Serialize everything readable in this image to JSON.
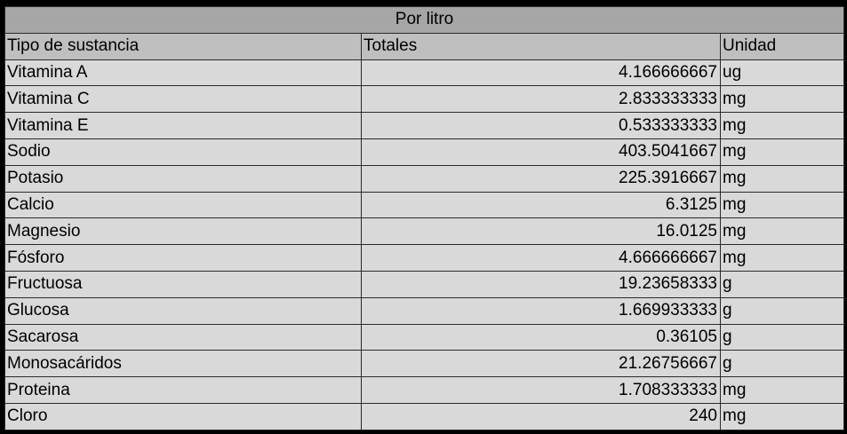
{
  "table": {
    "title": "Por litro",
    "headers": [
      "Tipo de sustancia",
      "Totales",
      "Unidad"
    ],
    "rows": [
      {
        "substance": "Vitamina A",
        "total": "4.166666667",
        "unit": "ug"
      },
      {
        "substance": "Vitamina C",
        "total": "2.833333333",
        "unit": "mg"
      },
      {
        "substance": "Vitamina E",
        "total": "0.533333333",
        "unit": "mg"
      },
      {
        "substance": "Sodio",
        "total": "403.5041667",
        "unit": "mg"
      },
      {
        "substance": "Potasio",
        "total": "225.3916667",
        "unit": "mg"
      },
      {
        "substance": "Calcio",
        "total": "6.3125",
        "unit": "mg"
      },
      {
        "substance": "Magnesio",
        "total": "16.0125",
        "unit": "mg"
      },
      {
        "substance": "Fósforo",
        "total": "4.666666667",
        "unit": "mg"
      },
      {
        "substance": "Fructuosa",
        "total": "19.23658333",
        "unit": "g"
      },
      {
        "substance": "Glucosa",
        "total": "1.669933333",
        "unit": "g"
      },
      {
        "substance": "Sacarosa",
        "total": "0.36105",
        "unit": "g"
      },
      {
        "substance": "Monosacáridos",
        "total": "21.26756667",
        "unit": "g"
      },
      {
        "substance": "Proteina",
        "total": "1.708333333",
        "unit": "mg"
      },
      {
        "substance": "Cloro",
        "total": "240",
        "unit": "mg"
      }
    ]
  },
  "colors": {
    "title_bg": "#a6a6a6",
    "header_bg": "#bfbfbf",
    "cell_bg": "#d9d9d9",
    "border": "#2a2a2a",
    "frame": "#000000"
  }
}
